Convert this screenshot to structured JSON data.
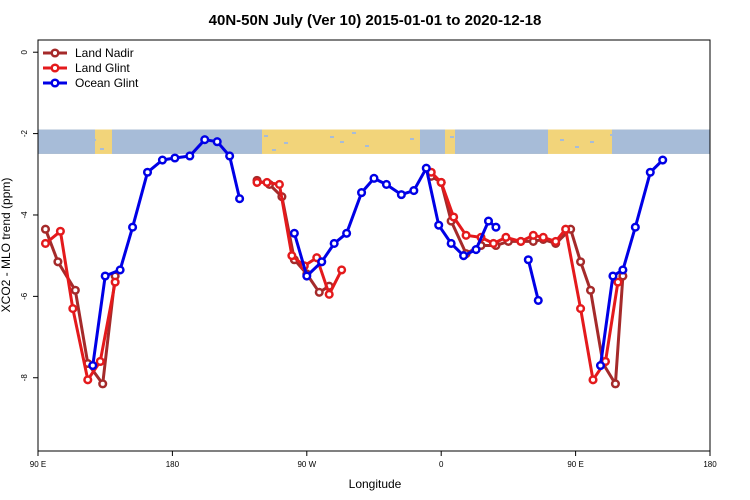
{
  "chart_data": {
    "type": "line",
    "title": "40N-50N July (Ver 10)   2015-01-01 to 2020-12-18",
    "xlabel": "Longitude",
    "ylabel": "XCO2 - MLO trend (ppm)",
    "x_tick_labels": [
      "90 E",
      "180",
      "90 W",
      "0",
      "90 E",
      "180"
    ],
    "y_tick_labels": [
      "0",
      "-2",
      "-4",
      "-6",
      "-8"
    ],
    "yticks": [
      0,
      -2,
      -4,
      -6,
      -8
    ],
    "xlim": [
      0,
      270
    ],
    "ylim": [
      -9.8,
      0.3
    ],
    "grid": false,
    "legend_position": "top-left",
    "map_band": {
      "y_top": -1.9,
      "y_bottom": -2.5,
      "land_color": "#f2d47a",
      "ocean_color": "#a7bcd8"
    },
    "series": [
      {
        "name": "Land Nadir",
        "color": "#a52a2a",
        "segments": [
          [
            [
              3,
              -4.35
            ],
            [
              8,
              -5.15
            ],
            [
              15,
              -5.85
            ],
            [
              20,
              -7.65
            ],
            [
              26,
              -8.15
            ],
            [
              31,
              -5.5
            ]
          ],
          [
            [
              88,
              -3.15
            ],
            [
              93,
              -3.25
            ],
            [
              98,
              -3.55
            ],
            [
              103,
              -5.1
            ],
            [
              108,
              -5.45
            ],
            [
              113,
              -5.9
            ],
            [
              117,
              -5.75
            ]
          ],
          [
            [
              158,
              -3.05
            ],
            [
              162,
              -3.2
            ],
            [
              166,
              -4.15
            ],
            [
              172,
              -4.95
            ],
            [
              178,
              -4.75
            ],
            [
              184,
              -4.75
            ],
            [
              189,
              -4.65
            ],
            [
              194,
              -4.65
            ],
            [
              199,
              -4.65
            ],
            [
              203,
              -4.6
            ],
            [
              208,
              -4.7
            ],
            [
              214,
              -4.35
            ],
            [
              218,
              -5.15
            ],
            [
              222,
              -5.85
            ],
            [
              227,
              -7.65
            ],
            [
              232,
              -8.15
            ],
            [
              235,
              -5.5
            ]
          ]
        ]
      },
      {
        "name": "Land Glint",
        "color": "#e41a1c",
        "segments": [
          [
            [
              3,
              -4.7
            ],
            [
              9,
              -4.4
            ],
            [
              14,
              -6.3
            ],
            [
              20,
              -8.05
            ],
            [
              25,
              -7.6
            ],
            [
              31,
              -5.65
            ]
          ],
          [
            [
              88,
              -3.2
            ],
            [
              92,
              -3.2
            ],
            [
              97,
              -3.25
            ],
            [
              102,
              -5.0
            ],
            [
              107,
              -5.25
            ],
            [
              112,
              -5.05
            ],
            [
              117,
              -5.95
            ],
            [
              122,
              -5.35
            ]
          ],
          [
            [
              158,
              -2.95
            ],
            [
              162,
              -3.2
            ],
            [
              167,
              -4.05
            ],
            [
              172,
              -4.5
            ],
            [
              178,
              -4.55
            ],
            [
              183,
              -4.7
            ],
            [
              188,
              -4.55
            ],
            [
              194,
              -4.65
            ],
            [
              199,
              -4.5
            ],
            [
              203,
              -4.55
            ],
            [
              208,
              -4.65
            ],
            [
              212,
              -4.35
            ],
            [
              218,
              -6.3
            ],
            [
              223,
              -8.05
            ],
            [
              228,
              -7.6
            ],
            [
              233,
              -5.65
            ]
          ]
        ]
      },
      {
        "name": "Ocean Glint",
        "color": "#0000e6",
        "segments": [
          [
            [
              22,
              -7.7
            ],
            [
              27,
              -5.5
            ],
            [
              33,
              -5.35
            ],
            [
              38,
              -4.3
            ],
            [
              44,
              -2.95
            ],
            [
              50,
              -2.65
            ],
            [
              55,
              -2.6
            ],
            [
              61,
              -2.55
            ],
            [
              67,
              -2.15
            ],
            [
              72,
              -2.2
            ],
            [
              77,
              -2.55
            ],
            [
              81,
              -3.6
            ]
          ],
          [
            [
              103,
              -4.45
            ],
            [
              108,
              -5.5
            ],
            [
              114,
              -5.15
            ],
            [
              119,
              -4.7
            ],
            [
              124,
              -4.45
            ],
            [
              130,
              -3.45
            ],
            [
              135,
              -3.1
            ],
            [
              140,
              -3.25
            ],
            [
              146,
              -3.5
            ],
            [
              151,
              -3.4
            ],
            [
              156,
              -2.85
            ],
            [
              161,
              -4.25
            ],
            [
              166,
              -4.7
            ],
            [
              171,
              -5.0
            ],
            [
              176,
              -4.85
            ],
            [
              181,
              -4.15
            ],
            [
              184,
              -4.3
            ]
          ],
          [
            [
              197,
              -5.1
            ],
            [
              201,
              -6.1
            ]
          ],
          [
            [
              226,
              -7.7
            ],
            [
              231,
              -5.5
            ],
            [
              235,
              -5.35
            ],
            [
              240,
              -4.3
            ],
            [
              246,
              -2.95
            ],
            [
              251,
              -2.65
            ]
          ]
        ]
      }
    ]
  }
}
